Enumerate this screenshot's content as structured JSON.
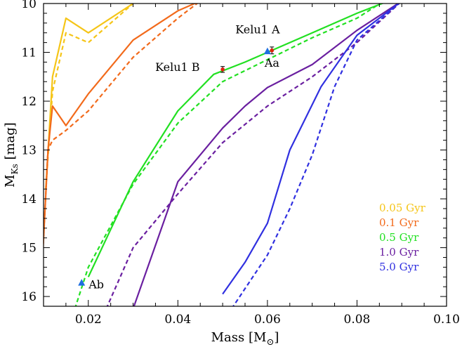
{
  "chart_data": {
    "type": "line",
    "xlabel": "Mass [M",
    "xlabel_sub": "⊙",
    "xlabel_close": "]",
    "ylabel": "M",
    "ylabel_sub": "Ks",
    "ylabel_unit": " [mag]",
    "xlim": [
      0.01,
      0.1
    ],
    "ylim": [
      16.2,
      10.0
    ],
    "y_inverted": true,
    "xticks": [
      0.02,
      0.04,
      0.06,
      0.08,
      0.1
    ],
    "xtick_labels": [
      "0.02",
      "0.04",
      "0.06",
      "0.08",
      "0.10"
    ],
    "yticks": [
      10,
      11,
      12,
      13,
      14,
      15,
      16
    ],
    "ytick_labels": [
      "10",
      "11",
      "12",
      "13",
      "14",
      "15",
      "16"
    ],
    "grid": false,
    "legend_position": "bottom-right",
    "series": [
      {
        "name": "0.05 Gyr",
        "color": "#f5c518",
        "solid": {
          "x": [
            0.0105,
            0.012,
            0.015,
            0.02,
            0.03
          ],
          "y": [
            13.8,
            11.5,
            10.3,
            10.6,
            10.0
          ]
        },
        "dashed": {
          "x": [
            0.0105,
            0.012,
            0.015,
            0.02,
            0.03
          ],
          "y": [
            13.8,
            11.8,
            10.6,
            10.8,
            10.0
          ]
        }
      },
      {
        "name": "0.1 Gyr",
        "color": "#f26a1b",
        "solid": {
          "x": [
            0.0098,
            0.011,
            0.012,
            0.015,
            0.02,
            0.03,
            0.04,
            0.045
          ],
          "y": [
            15.2,
            13.0,
            12.1,
            12.5,
            11.85,
            10.75,
            10.15,
            9.95
          ]
        },
        "dashed": {
          "x": [
            0.0098,
            0.011,
            0.012,
            0.015,
            0.02,
            0.03,
            0.04,
            0.045
          ],
          "y": [
            15.2,
            13.0,
            12.8,
            12.6,
            12.2,
            11.1,
            10.3,
            9.95
          ]
        }
      },
      {
        "name": "0.5 Gyr",
        "color": "#22e022",
        "solid": {
          "x": [
            0.02,
            0.03,
            0.04,
            0.048,
            0.055,
            0.06,
            0.07,
            0.08,
            0.087
          ],
          "y": [
            15.6,
            13.65,
            12.2,
            11.45,
            11.2,
            11.0,
            10.6,
            10.2,
            9.95
          ]
        },
        "dashed": {
          "x": [
            0.017,
            0.02,
            0.03,
            0.04,
            0.05,
            0.06,
            0.07,
            0.08,
            0.086
          ],
          "y": [
            16.25,
            15.4,
            13.7,
            12.45,
            11.6,
            11.15,
            10.7,
            10.3,
            9.95
          ]
        }
      },
      {
        "name": "1.0 Gyr",
        "color": "#6a1fa0",
        "solid": {
          "x": [
            0.03,
            0.04,
            0.05,
            0.055,
            0.06,
            0.07,
            0.08,
            0.09
          ],
          "y": [
            16.25,
            13.65,
            12.55,
            12.1,
            11.72,
            11.25,
            10.55,
            9.95
          ]
        },
        "dashed": {
          "x": [
            0.024,
            0.03,
            0.04,
            0.05,
            0.06,
            0.07,
            0.08,
            0.09
          ],
          "y": [
            16.25,
            15.0,
            13.9,
            12.85,
            12.1,
            11.5,
            10.8,
            9.95
          ]
        }
      },
      {
        "name": "5.0 Gyr",
        "color": "#3030e0",
        "solid": {
          "x": [
            0.05,
            0.055,
            0.06,
            0.065,
            0.072,
            0.08,
            0.09
          ],
          "y": [
            15.95,
            15.3,
            14.5,
            13.0,
            11.7,
            10.65,
            9.95
          ]
        },
        "dashed": {
          "x": [
            0.052,
            0.06,
            0.065,
            0.07,
            0.075,
            0.08,
            0.09
          ],
          "y": [
            16.25,
            15.15,
            14.2,
            13.1,
            11.7,
            10.75,
            9.95
          ]
        }
      }
    ],
    "observed_points": [
      {
        "label": "Kelu1 B",
        "x": 0.05,
        "y": 11.35,
        "yerr": 0.06,
        "color": "#e02010"
      },
      {
        "label": "Kelu1 A",
        "x": 0.061,
        "y": 10.96,
        "yerr": 0.07,
        "color": "#e02010"
      }
    ],
    "model_points": [
      {
        "label": "Aa",
        "x": 0.06,
        "y": 10.98,
        "color": "#1e6fe0"
      },
      {
        "label": "Ab",
        "x": 0.0185,
        "y": 15.72,
        "color": "#1e6fe0"
      }
    ]
  }
}
